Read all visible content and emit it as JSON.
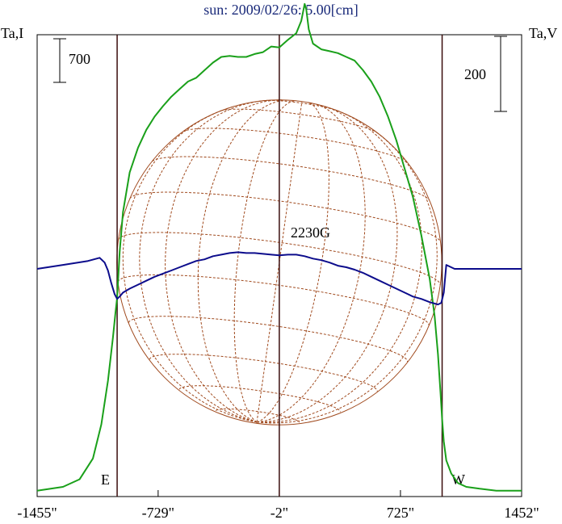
{
  "chart_data": {
    "type": "line",
    "title": "sun: 2009/02/26: 5.00[cm]",
    "left_axis_label": "Ta,I",
    "right_axis_label": "Ta,V",
    "left_scale_bar": "700",
    "right_scale_bar": "200",
    "x_tick_labels": [
      "-1455\"",
      "-729\"",
      "-2\"",
      "725\"",
      "1452\""
    ],
    "x_ticks": [
      -1455,
      -729,
      -2,
      725,
      1452
    ],
    "xlim": [
      -1455,
      1452
    ],
    "limb_markers": {
      "east": "E",
      "west": "W"
    },
    "limb_positions": [
      -975,
      -2,
      975
    ],
    "annotation": "2230G",
    "disk_radius_arcsec": 975,
    "grid": false,
    "colors": {
      "intensity": "#1aa01a",
      "polarization": "#0c0c8c",
      "disk": "#a04a1e",
      "limb_lines": "#3a0c0c",
      "title": "#1a2a7a"
    },
    "series": [
      {
        "key": "intensity",
        "x": [
          -1455,
          -1300,
          -1200,
          -1120,
          -1070,
          -1030,
          -1000,
          -985,
          -975,
          -960,
          -940,
          -900,
          -850,
          -800,
          -750,
          -700,
          -650,
          -600,
          -550,
          -500,
          -450,
          -400,
          -350,
          -300,
          -250,
          -200,
          -150,
          -100,
          -50,
          -2,
          50,
          100,
          130,
          150,
          160,
          175,
          200,
          250,
          300,
          350,
          400,
          450,
          500,
          550,
          600,
          650,
          700,
          750,
          800,
          850,
          900,
          930,
          950,
          965,
          975,
          985,
          1000,
          1030,
          1070,
          1120,
          1200,
          1300,
          1452
        ],
        "y": [
          -20,
          0,
          40,
          150,
          330,
          560,
          790,
          920,
          1000,
          1240,
          1450,
          1660,
          1790,
          1885,
          1955,
          2010,
          2060,
          2100,
          2140,
          2160,
          2200,
          2240,
          2270,
          2275,
          2270,
          2270,
          2285,
          2295,
          2325,
          2320,
          2360,
          2395,
          2460,
          2550,
          2520,
          2415,
          2340,
          2310,
          2300,
          2290,
          2270,
          2250,
          2200,
          2140,
          2060,
          1955,
          1830,
          1680,
          1530,
          1330,
          1100,
          900,
          700,
          500,
          360,
          240,
          140,
          70,
          20,
          0,
          -10,
          -20,
          -20
        ]
      },
      {
        "key": "polarization",
        "x": [
          -1455,
          -1300,
          -1150,
          -1080,
          -1050,
          -1030,
          -1010,
          -990,
          -975,
          -960,
          -940,
          -900,
          -850,
          -800,
          -750,
          -700,
          -650,
          -600,
          -550,
          -500,
          -450,
          -400,
          -350,
          -300,
          -250,
          -200,
          -150,
          -100,
          -50,
          -2,
          50,
          100,
          150,
          200,
          250,
          300,
          350,
          400,
          450,
          500,
          550,
          600,
          650,
          700,
          750,
          800,
          850,
          900,
          950,
          970,
          985,
          1000,
          1050,
          1100,
          1200,
          1300,
          1452
        ],
        "y": [
          0,
          5,
          10,
          14,
          8,
          -2,
          -18,
          -32,
          -38,
          -35,
          -30,
          -25,
          -20,
          -15,
          -10,
          -6,
          -2,
          2,
          6,
          10,
          12,
          16,
          18,
          20,
          21,
          20,
          20,
          19,
          18,
          17,
          18,
          18,
          16,
          13,
          11,
          8,
          4,
          2,
          -1,
          -5,
          -10,
          -15,
          -20,
          -25,
          -30,
          -35,
          -38,
          -42,
          -45,
          -43,
          -30,
          5,
          0,
          0,
          0,
          0,
          0
        ]
      }
    ]
  }
}
